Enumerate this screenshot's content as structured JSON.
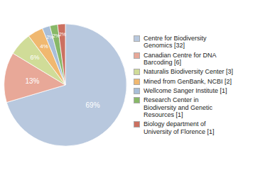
{
  "chart_data": {
    "type": "pie",
    "labels": [
      "Centre for Biodiversity\nGenomics [32]",
      "Canadian Centre for DNA\nBarcoding [6]",
      "Naturalis Biodiversity Center [3]",
      "Mined from GenBank, NCBI [2]",
      "Wellcome Sanger Institute [1]",
      "Research Center in\nBiodiversity and Genetic\nResources [1]",
      "Biology department of\nUniversity of Florence [1]"
    ],
    "values": [
      69,
      13,
      6,
      4,
      2,
      2,
      2
    ],
    "value_labels": [
      "69%",
      "13%",
      "6%",
      "4%",
      "2%",
      "2%",
      "2%"
    ],
    "colors": [
      "#b8c8de",
      "#e8a898",
      "#d0dc98",
      "#f0b870",
      "#a8bed8",
      "#88b868",
      "#cc7060"
    ],
    "data_labels": true,
    "legend": "right"
  }
}
